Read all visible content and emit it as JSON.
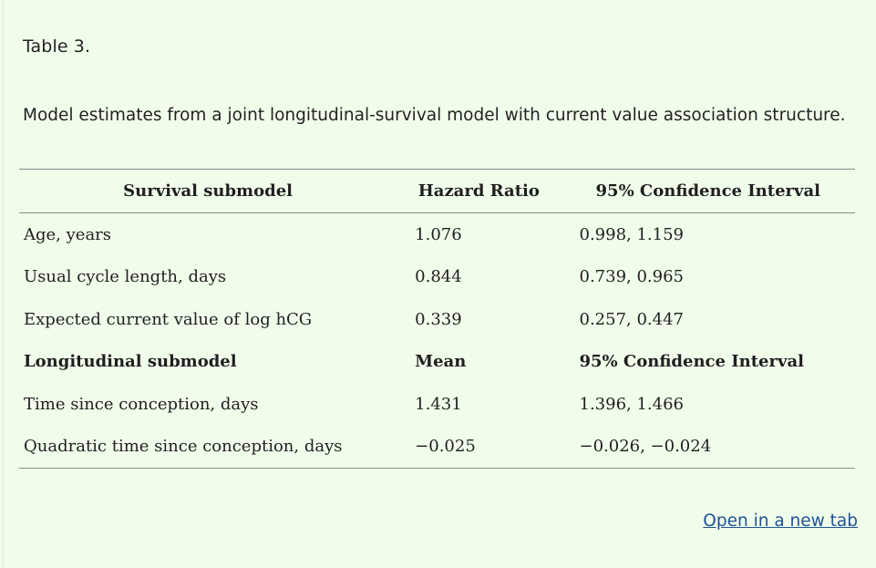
{
  "table_label": "Table 3.",
  "caption": "Model estimates from a joint longitudinal-survival model with current value association structure.",
  "table": {
    "headers": [
      "Survival submodel",
      "Hazard Ratio",
      "95% Confidence Interval"
    ],
    "rows": [
      [
        "Age, years",
        "1.076",
        "0.998, 1.159"
      ],
      [
        "Usual cycle length, days",
        "0.844",
        "0.739, 0.965"
      ],
      [
        "Expected current value of log hCG",
        "0.339",
        "0.257, 0.447"
      ],
      [
        "Longitudinal submodel",
        "Mean",
        "95% Confidence Interval"
      ],
      [
        "Time since conception, days",
        "1.431",
        "1.396, 1.466"
      ],
      [
        "Quadratic time since conception, days",
        "−0.025",
        "−0.026, −0.024"
      ]
    ]
  },
  "link": {
    "open_new_tab": "Open in a new tab"
  },
  "colors": {
    "background": "#f1fdeb",
    "link": "#205493",
    "rule": "#8a8a8a"
  }
}
